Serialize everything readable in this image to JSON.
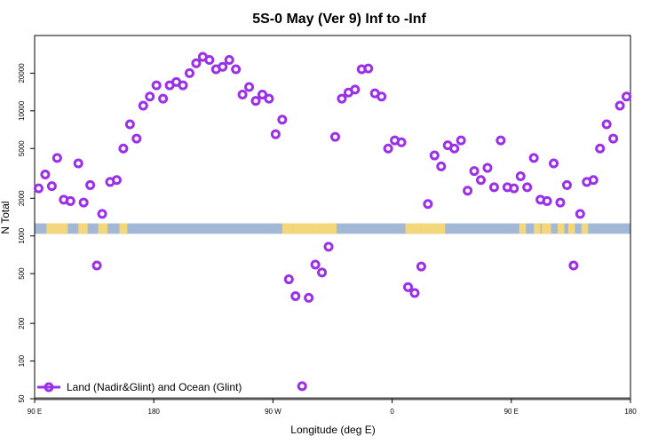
{
  "chart_data": {
    "type": "scatter",
    "title": "5S-0 May (Ver 9)   Inf to -Inf",
    "xlabel": "Longitude (deg E)",
    "ylabel": "N Total",
    "x_scale": "linear",
    "y_scale": "log",
    "xlim": [
      90,
      540
    ],
    "ylim": [
      50,
      40000
    ],
    "x_ticks": [
      {
        "value": 90,
        "label": "90 E"
      },
      {
        "value": 180,
        "label": "180"
      },
      {
        "value": 270,
        "label": "90 W"
      },
      {
        "value": 360,
        "label": "0"
      },
      {
        "value": 450,
        "label": "90 E"
      },
      {
        "value": 540,
        "label": "180"
      }
    ],
    "y_ticks": [
      {
        "value": 50,
        "label": "50"
      },
      {
        "value": 100,
        "label": "100"
      },
      {
        "value": 200,
        "label": "200"
      },
      {
        "value": 500,
        "label": "500"
      },
      {
        "value": 1000,
        "label": "1000"
      },
      {
        "value": 2000,
        "label": "2000"
      },
      {
        "value": 5000,
        "label": "5000"
      },
      {
        "value": 10000,
        "label": "10000"
      },
      {
        "value": 20000,
        "label": "20000"
      }
    ],
    "legend_position": "bottom-left",
    "land_ocean_strip": {
      "y_range": [
        1040,
        1260
      ],
      "ocean_color": "#a3b7d6",
      "land_color": "#f5d77b",
      "land_segments": [
        [
          99,
          115
        ],
        [
          123,
          130
        ],
        [
          138,
          145
        ],
        [
          154,
          160
        ],
        [
          277,
          285
        ],
        [
          285,
          305
        ],
        [
          305,
          318
        ],
        [
          370,
          375
        ],
        [
          375,
          382
        ],
        [
          382,
          400
        ],
        [
          456,
          461
        ],
        [
          467,
          472
        ],
        [
          473,
          480
        ],
        [
          485,
          490
        ],
        [
          493,
          498
        ],
        [
          503,
          508
        ]
      ]
    },
    "series": [
      {
        "name": "Land (Nadir&Glint) and Ocean (Glint)",
        "color": "#9b30e8",
        "marker": "ring",
        "x": [
          93,
          98,
          103,
          107,
          112,
          117,
          123,
          127,
          132,
          137,
          141,
          147,
          152,
          157,
          162,
          167,
          172,
          177,
          182,
          187,
          192,
          197,
          202,
          207,
          212,
          217,
          222,
          227,
          232,
          237,
          242,
          247,
          252,
          257,
          262,
          267,
          272,
          277,
          282,
          287,
          292,
          297,
          302,
          307,
          312,
          317,
          322,
          327,
          332,
          337,
          342,
          347,
          352,
          357,
          362,
          367,
          372,
          377,
          382,
          387,
          392,
          397,
          402,
          407,
          412,
          417,
          422,
          427,
          432,
          437,
          442,
          447,
          452,
          457,
          462,
          467,
          472,
          477,
          482,
          487,
          492,
          497,
          502,
          507,
          512,
          517,
          522,
          527,
          532,
          537
        ],
        "y": [
          2400,
          3100,
          2500,
          4200,
          1950,
          1900,
          3800,
          1850,
          2550,
          580,
          1500,
          2700,
          2800,
          5000,
          7800,
          6000,
          11000,
          13000,
          16000,
          12500,
          16000,
          17000,
          16000,
          20000,
          24000,
          27000,
          25500,
          21500,
          22500,
          25500,
          21500,
          13500,
          15500,
          12000,
          13500,
          12500,
          6500,
          8500,
          450,
          330,
          63,
          320,
          590,
          510,
          820,
          6200,
          12500,
          14000,
          14800,
          21500,
          21800,
          13800,
          13000,
          5000,
          5800,
          5600,
          390,
          350,
          570,
          1800,
          4400,
          3600,
          5300,
          5000,
          5800,
          2300,
          3300,
          2800,
          3500,
          2450,
          5800,
          2450,
          2400,
          3000,
          2450,
          4200,
          1950,
          1900,
          3800,
          1850,
          2550,
          580,
          1500,
          2700,
          2800,
          5000,
          7800,
          6000,
          11000,
          13000
        ]
      }
    ]
  }
}
